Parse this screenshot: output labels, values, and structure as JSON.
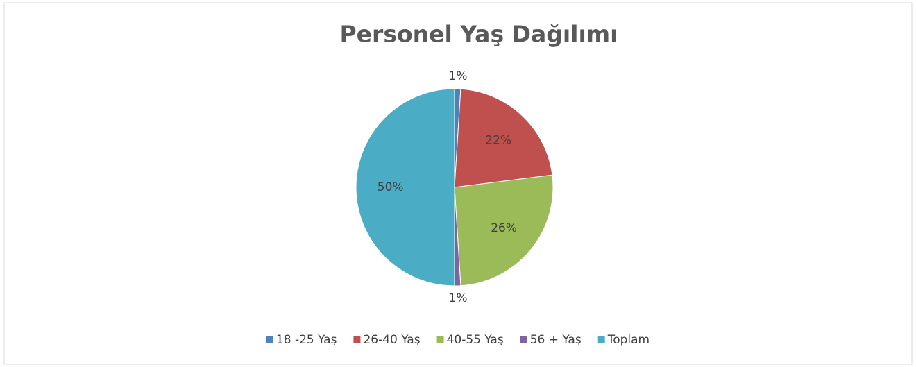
{
  "chart_data": {
    "type": "pie",
    "title": "Personel Yaş Dağılımı",
    "categories": [
      "18 -25 Yaş",
      "26-40 Yaş",
      "40-55 Yaş",
      "56 + Yaş",
      "Toplam"
    ],
    "values": [
      1,
      22,
      26,
      1,
      50
    ],
    "value_labels": [
      "1%",
      "22%",
      "26%",
      "1%",
      "50%"
    ],
    "colors": [
      "#4f81bd",
      "#c0504d",
      "#9bbb59",
      "#8064a2",
      "#4bacc6"
    ],
    "legend": "bottom"
  }
}
